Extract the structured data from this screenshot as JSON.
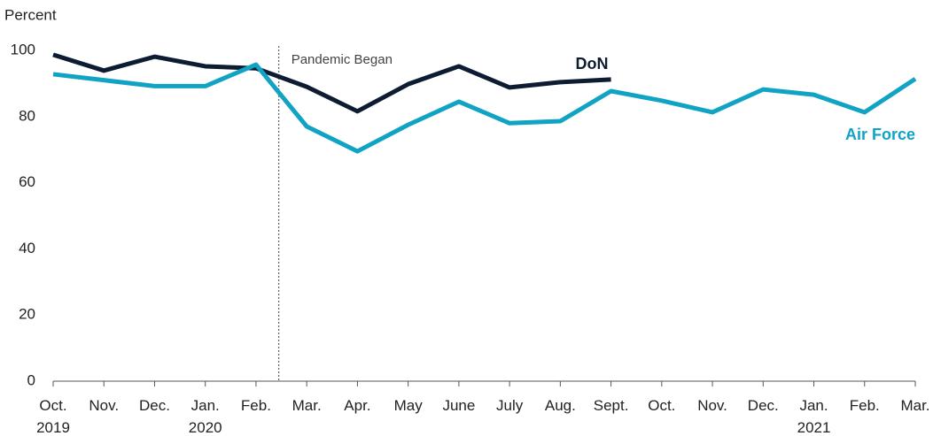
{
  "chart_data": {
    "type": "line",
    "y_axis_label": "Percent",
    "categories": [
      "Oct.\n2019",
      "Nov.",
      "Dec.",
      "Jan.\n2020",
      "Feb.",
      "Mar.",
      "Apr.",
      "May",
      "June",
      "July",
      "Aug.",
      "Sept.",
      "Oct.",
      "Nov.",
      "Dec.",
      "Jan.\n2021",
      "Feb.",
      "Mar."
    ],
    "series": [
      {
        "name": "DoN",
        "color": "#0d1b33",
        "values": [
          98.7,
          93.9,
          98.1,
          95.2,
          94.6,
          89,
          81.6,
          89.8,
          95.2,
          88.8,
          90.4,
          91.2,
          null,
          null,
          null,
          null,
          null,
          null
        ]
      },
      {
        "name": "Air Force",
        "color": "#10a3c4",
        "values": [
          92.8,
          91,
          89.2,
          89.2,
          95.7,
          77,
          69.5,
          77.5,
          84.5,
          78,
          78.6,
          87.7,
          84.8,
          81.3,
          88.2,
          86.6,
          81.3,
          91.4
        ]
      }
    ],
    "annotation": "Pandemic Began",
    "ylim": [
      0,
      100
    ],
    "yticks": [
      0,
      20,
      40,
      60,
      80,
      100
    ],
    "grid": false
  }
}
